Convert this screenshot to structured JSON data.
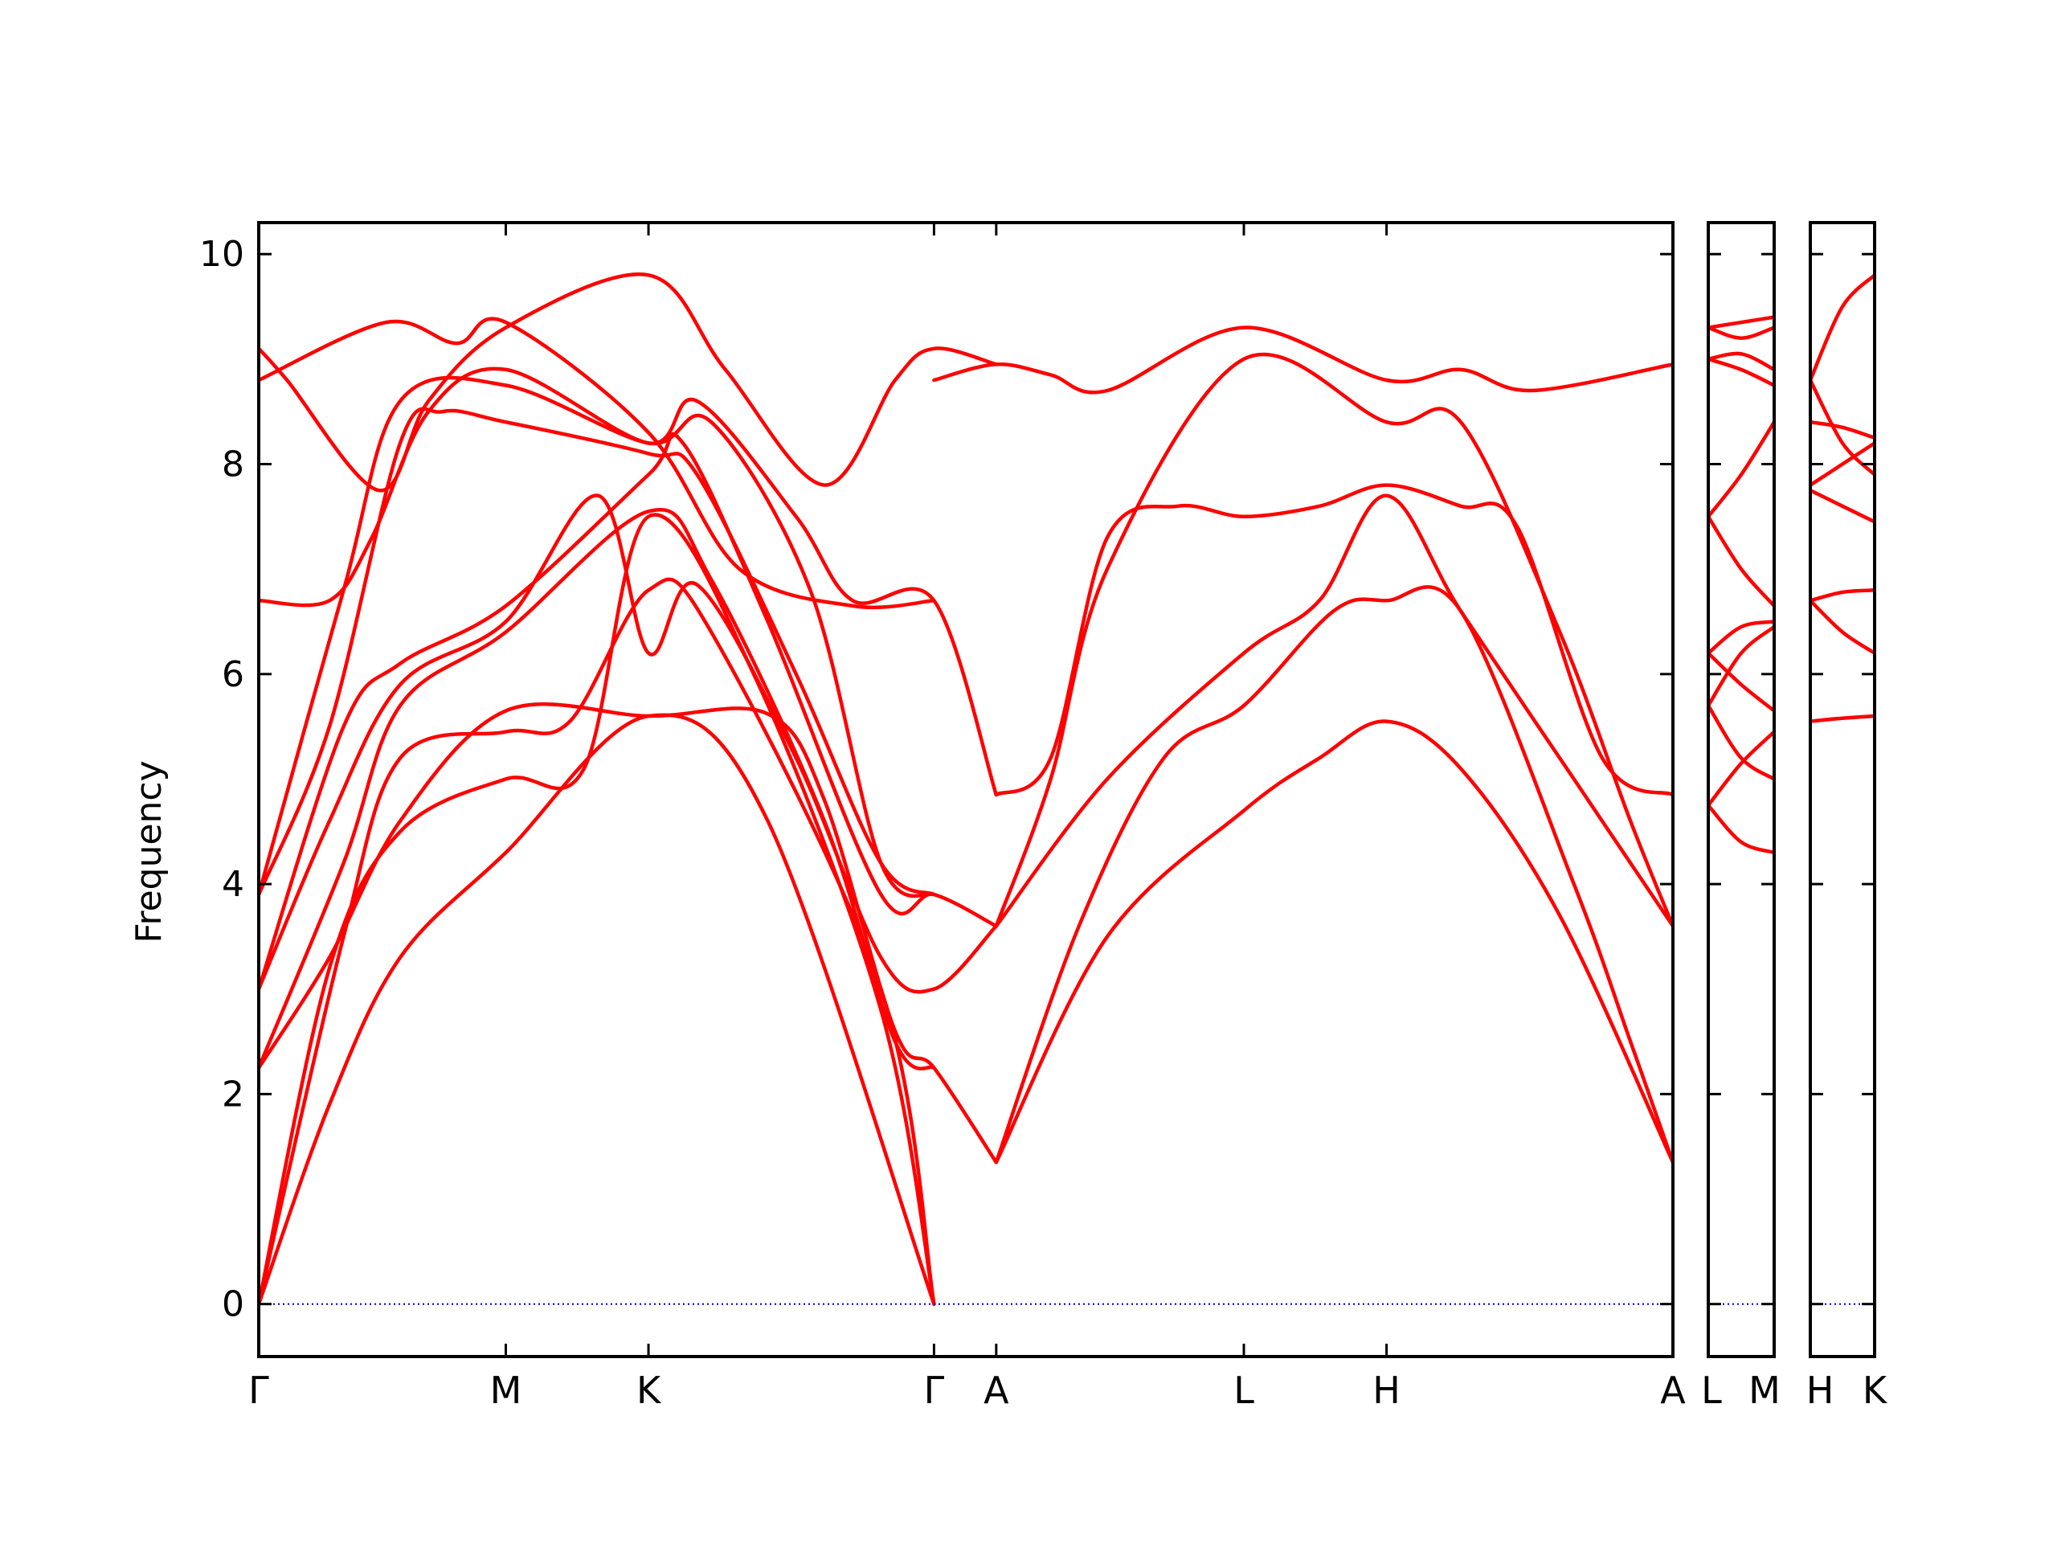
{
  "figure": {
    "ylabel": "Frequency"
  },
  "chart_data": {
    "type": "line",
    "title": "",
    "xlabel": "",
    "ylabel": "Frequency",
    "ylim": [
      -0.5,
      10.3
    ],
    "yticks": [
      0,
      2,
      4,
      6,
      8,
      10
    ],
    "ytick_labels": [
      "0",
      "2",
      "4",
      "6",
      "8",
      "10"
    ],
    "line_color": "#ff0000",
    "zero_line_color": "#0000ff",
    "grid": false,
    "legend": "none",
    "panels": [
      {
        "path": [
          "Γ",
          "M",
          "K",
          "Γ",
          "A",
          "L",
          "H",
          "A"
        ],
        "x_tick_positions": [
          0,
          0.1747,
          0.2756,
          0.4775,
          0.5215,
          0.6966,
          0.7975,
          1.0
        ],
        "x_tick_labels": [
          "Γ",
          "M",
          "K",
          "Γ",
          "A",
          "L",
          "H",
          "A"
        ]
      },
      {
        "path": [
          "L",
          "M"
        ],
        "x_tick_positions": [
          0,
          1
        ],
        "x_tick_labels": [
          "L",
          "M"
        ]
      },
      {
        "path": [
          "H",
          "K"
        ],
        "x_tick_positions": [
          0,
          1
        ],
        "x_tick_labels": [
          "H",
          "K"
        ]
      }
    ],
    "series": [
      {
        "panel": 0,
        "points": [
          [
            0,
            0
          ],
          [
            0.05,
            1.9
          ],
          [
            0.1,
            3.3
          ],
          [
            0.1747,
            4.3
          ],
          [
            0.2756,
            5.6
          ],
          [
            0.36,
            4.6
          ],
          [
            0.4775,
            0
          ]
        ]
      },
      {
        "panel": 0,
        "points": [
          [
            0,
            0
          ],
          [
            0.05,
            3.2
          ],
          [
            0.1,
            4.5
          ],
          [
            0.1747,
            5.0
          ],
          [
            0.23,
            5.1
          ],
          [
            0.2756,
            7.5
          ],
          [
            0.35,
            6.0
          ],
          [
            0.44,
            2.8
          ],
          [
            0.4775,
            0
          ]
        ]
      },
      {
        "panel": 0,
        "points": [
          [
            0,
            0
          ],
          [
            0.06,
            3.5
          ],
          [
            0.1,
            5.2
          ],
          [
            0.1747,
            5.45
          ],
          [
            0.22,
            5.55
          ],
          [
            0.2756,
            6.8
          ],
          [
            0.32,
            6.4
          ],
          [
            0.44,
            3.0
          ],
          [
            0.4775,
            0
          ]
        ]
      },
      {
        "panel": 0,
        "points": [
          [
            0,
            2.25
          ],
          [
            0.05,
            3.3
          ],
          [
            0.1,
            4.6
          ],
          [
            0.1747,
            5.65
          ],
          [
            0.2756,
            5.6
          ],
          [
            0.36,
            5.62
          ],
          [
            0.4,
            4.8
          ],
          [
            0.45,
            2.6
          ],
          [
            0.4775,
            2.25
          ],
          [
            0.5215,
            1.35
          ]
        ]
      },
      {
        "panel": 0,
        "points": [
          [
            0,
            2.25
          ],
          [
            0.06,
            4.2
          ],
          [
            0.1,
            5.7
          ],
          [
            0.1747,
            6.4
          ],
          [
            0.2756,
            7.55
          ],
          [
            0.32,
            6.9
          ],
          [
            0.4,
            4.6
          ],
          [
            0.45,
            2.5
          ],
          [
            0.4775,
            2.25
          ]
        ]
      },
      {
        "panel": 0,
        "points": [
          [
            0,
            3.0
          ],
          [
            0.05,
            4.6
          ],
          [
            0.1,
            5.9
          ],
          [
            0.1747,
            6.5
          ],
          [
            0.24,
            7.7
          ],
          [
            0.2756,
            6.2
          ],
          [
            0.31,
            6.85
          ],
          [
            0.38,
            5.2
          ],
          [
            0.44,
            3.3
          ],
          [
            0.4775,
            3.0
          ],
          [
            0.5215,
            3.6
          ]
        ]
      },
      {
        "panel": 0,
        "points": [
          [
            0,
            3.0
          ],
          [
            0.06,
            5.5
          ],
          [
            0.1,
            6.1
          ],
          [
            0.1747,
            6.65
          ],
          [
            0.2756,
            7.9
          ],
          [
            0.3,
            8.2
          ],
          [
            0.36,
            6.5
          ],
          [
            0.44,
            3.9
          ],
          [
            0.4775,
            3.9
          ],
          [
            0.5215,
            3.6
          ]
        ]
      },
      {
        "panel": 0,
        "points": [
          [
            0,
            3.9
          ],
          [
            0.05,
            5.5
          ],
          [
            0.1,
            8.2
          ],
          [
            0.13,
            8.5
          ],
          [
            0.1747,
            8.4
          ],
          [
            0.2756,
            8.1
          ],
          [
            0.31,
            7.9
          ],
          [
            0.38,
            6.0
          ],
          [
            0.44,
            4.2
          ],
          [
            0.4775,
            3.9
          ]
        ]
      },
      {
        "panel": 0,
        "points": [
          [
            0,
            3.9
          ],
          [
            0.06,
            6.8
          ],
          [
            0.1,
            8.6
          ],
          [
            0.1747,
            8.75
          ],
          [
            0.2756,
            8.2
          ],
          [
            0.32,
            8.4
          ],
          [
            0.39,
            6.8
          ],
          [
            0.44,
            4.2
          ],
          [
            0.4775,
            3.9
          ]
        ]
      },
      {
        "panel": 0,
        "points": [
          [
            0,
            6.7
          ],
          [
            0.05,
            6.7
          ],
          [
            0.08,
            7.3
          ],
          [
            0.12,
            8.5
          ],
          [
            0.1747,
            8.9
          ],
          [
            0.2756,
            8.2
          ],
          [
            0.31,
            8.6
          ],
          [
            0.38,
            7.5
          ],
          [
            0.42,
            6.7
          ],
          [
            0.4775,
            6.7
          ],
          [
            0.5215,
            4.85
          ]
        ]
      },
      {
        "panel": 0,
        "points": [
          [
            0,
            8.8
          ],
          [
            0.09,
            9.35
          ],
          [
            0.14,
            9.15
          ],
          [
            0.1747,
            9.35
          ],
          [
            0.2756,
            8.3
          ],
          [
            0.34,
            7.0
          ],
          [
            0.42,
            6.65
          ],
          [
            0.4775,
            6.7
          ]
        ]
      },
      {
        "panel": 0,
        "points": [
          [
            0,
            9.1
          ],
          [
            0.02,
            8.8
          ],
          [
            0.085,
            7.75
          ],
          [
            0.12,
            8.6
          ],
          [
            0.1747,
            9.3
          ],
          [
            0.2756,
            9.8
          ],
          [
            0.33,
            8.9
          ],
          [
            0.4,
            7.8
          ],
          [
            0.45,
            8.8
          ],
          [
            0.4775,
            9.1
          ],
          [
            0.5215,
            8.95
          ]
        ]
      },
      {
        "panel": 0,
        "points": [
          [
            0.4775,
            8.8
          ],
          [
            0.5215,
            8.95
          ],
          [
            0.56,
            8.85
          ],
          [
            0.6,
            8.7
          ],
          [
            0.6966,
            9.3
          ],
          [
            0.7975,
            8.8
          ],
          [
            0.85,
            8.9
          ],
          [
            0.9,
            8.7
          ],
          [
            1.0,
            8.95
          ]
        ]
      },
      {
        "panel": 0,
        "points": [
          [
            0.5215,
            4.85
          ],
          [
            0.56,
            5.2
          ],
          [
            0.6,
            7.3
          ],
          [
            0.65,
            7.6
          ],
          [
            0.6966,
            7.5
          ],
          [
            0.75,
            7.6
          ],
          [
            0.7975,
            7.8
          ],
          [
            0.85,
            7.6
          ],
          [
            0.89,
            7.4
          ],
          [
            0.95,
            5.2
          ],
          [
            1.0,
            4.85
          ]
        ]
      },
      {
        "panel": 0,
        "points": [
          [
            0.5215,
            3.6
          ],
          [
            0.56,
            5.0
          ],
          [
            0.6,
            7.0
          ],
          [
            0.6966,
            9.0
          ],
          [
            0.7975,
            8.4
          ],
          [
            0.85,
            8.4
          ],
          [
            0.92,
            6.4
          ],
          [
            0.97,
            4.6
          ],
          [
            1.0,
            3.6
          ]
        ]
      },
      {
        "panel": 0,
        "points": [
          [
            0.5215,
            3.6
          ],
          [
            0.6,
            5.0
          ],
          [
            0.6966,
            6.2
          ],
          [
            0.75,
            6.7
          ],
          [
            0.7975,
            7.7
          ],
          [
            0.85,
            6.6
          ],
          [
            0.93,
            5.0
          ],
          [
            1.0,
            3.6
          ]
        ]
      },
      {
        "panel": 0,
        "points": [
          [
            0.5215,
            1.35
          ],
          [
            0.58,
            3.6
          ],
          [
            0.64,
            5.2
          ],
          [
            0.6966,
            5.7
          ],
          [
            0.76,
            6.6
          ],
          [
            0.7975,
            6.7
          ],
          [
            0.85,
            6.6
          ],
          [
            0.93,
            4.0
          ],
          [
            0.97,
            2.5
          ],
          [
            1.0,
            1.35
          ]
        ]
      },
      {
        "panel": 0,
        "points": [
          [
            0.5215,
            1.35
          ],
          [
            0.6,
            3.5
          ],
          [
            0.6966,
            4.7
          ],
          [
            0.75,
            5.2
          ],
          [
            0.7975,
            5.55
          ],
          [
            0.85,
            5.1
          ],
          [
            0.92,
            3.7
          ],
          [
            1.0,
            1.35
          ]
        ]
      },
      {
        "panel": 1,
        "points": [
          [
            0,
            9.3
          ],
          [
            0.5,
            9.35
          ],
          [
            1,
            9.4
          ]
        ]
      },
      {
        "panel": 1,
        "points": [
          [
            0,
            9.3
          ],
          [
            0.5,
            9.2
          ],
          [
            1,
            9.3
          ]
        ]
      },
      {
        "panel": 1,
        "points": [
          [
            0,
            9.0
          ],
          [
            0.5,
            9.05
          ],
          [
            1,
            8.9
          ]
        ]
      },
      {
        "panel": 1,
        "points": [
          [
            0,
            9.0
          ],
          [
            0.5,
            8.9
          ],
          [
            1,
            8.75
          ]
        ]
      },
      {
        "panel": 1,
        "points": [
          [
            0,
            7.5
          ],
          [
            0.5,
            7.9
          ],
          [
            1,
            8.4
          ]
        ]
      },
      {
        "panel": 1,
        "points": [
          [
            0,
            7.5
          ],
          [
            0.5,
            7.0
          ],
          [
            1,
            6.65
          ]
        ]
      },
      {
        "panel": 1,
        "points": [
          [
            0,
            6.2
          ],
          [
            0.5,
            6.45
          ],
          [
            1,
            6.5
          ]
        ]
      },
      {
        "panel": 1,
        "points": [
          [
            0,
            6.2
          ],
          [
            0.5,
            5.9
          ],
          [
            1,
            5.65
          ]
        ]
      },
      {
        "panel": 1,
        "points": [
          [
            0,
            5.7
          ],
          [
            0.5,
            6.2
          ],
          [
            1,
            6.45
          ]
        ]
      },
      {
        "panel": 1,
        "points": [
          [
            0,
            5.7
          ],
          [
            0.5,
            5.2
          ],
          [
            1,
            5.0
          ]
        ]
      },
      {
        "panel": 1,
        "points": [
          [
            0,
            4.75
          ],
          [
            0.5,
            5.15
          ],
          [
            1,
            5.45
          ]
        ]
      },
      {
        "panel": 1,
        "points": [
          [
            0,
            4.75
          ],
          [
            0.5,
            4.4
          ],
          [
            1,
            4.3
          ]
        ]
      },
      {
        "panel": 2,
        "points": [
          [
            0,
            8.8
          ],
          [
            0.5,
            9.5
          ],
          [
            1,
            9.8
          ]
        ]
      },
      {
        "panel": 2,
        "points": [
          [
            0,
            8.8
          ],
          [
            0.5,
            8.2
          ],
          [
            1,
            7.9
          ]
        ]
      },
      {
        "panel": 2,
        "points": [
          [
            0,
            8.4
          ],
          [
            0.5,
            8.35
          ],
          [
            1,
            8.25
          ]
        ]
      },
      {
        "panel": 2,
        "points": [
          [
            0,
            7.8
          ],
          [
            0.5,
            8.0
          ],
          [
            1,
            8.2
          ]
        ]
      },
      {
        "panel": 2,
        "points": [
          [
            0,
            7.75
          ],
          [
            0.5,
            7.6
          ],
          [
            1,
            7.45
          ]
        ]
      },
      {
        "panel": 2,
        "points": [
          [
            0,
            6.7
          ],
          [
            0.5,
            6.78
          ],
          [
            1,
            6.8
          ]
        ]
      },
      {
        "panel": 2,
        "points": [
          [
            0,
            6.7
          ],
          [
            0.5,
            6.4
          ],
          [
            1,
            6.2
          ]
        ]
      },
      {
        "panel": 2,
        "points": [
          [
            0,
            5.55
          ],
          [
            0.5,
            5.58
          ],
          [
            1,
            5.6
          ]
        ]
      }
    ]
  }
}
